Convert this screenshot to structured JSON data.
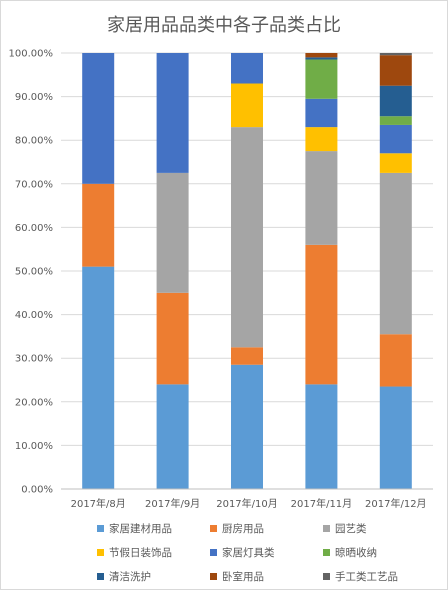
{
  "chart_data": {
    "type": "bar",
    "stacked": true,
    "title": "家居用品品类中各子品类占比",
    "categories": [
      "2017年/8月",
      "2017年/9月",
      "2017年/10月",
      "2017年/11月",
      "2017年/12月"
    ],
    "y_ticks": [
      "0.00%",
      "10.00%",
      "20.00%",
      "30.00%",
      "40.00%",
      "50.00%",
      "60.00%",
      "70.00%",
      "80.00%",
      "90.00%",
      "100.00%"
    ],
    "ylim": [
      0,
      100
    ],
    "grid": true,
    "legend_position": "bottom",
    "series": [
      {
        "name": "家居建材用品",
        "color": "#5b9bd5",
        "values": [
          51.0,
          24.0,
          28.5,
          24.0,
          23.5
        ]
      },
      {
        "name": "厨房用品",
        "color": "#ed7d31",
        "values": [
          19.0,
          21.0,
          4.0,
          32.0,
          12.0
        ]
      },
      {
        "name": "园艺类",
        "color": "#a5a5a5",
        "values": [
          0,
          27.5,
          50.5,
          21.5,
          37.0
        ]
      },
      {
        "name": "节假日装饰品",
        "color": "#ffc000",
        "values": [
          0,
          0,
          10.0,
          5.5,
          4.5
        ]
      },
      {
        "name": "家居灯具类",
        "color": "#4472c4",
        "values": [
          30.0,
          27.5,
          7.0,
          6.5,
          6.5
        ]
      },
      {
        "name": "晾晒收纳",
        "color": "#70ad47",
        "values": [
          0,
          0,
          0,
          9.0,
          2.0
        ]
      },
      {
        "name": "清洁洗护",
        "color": "#255e91",
        "values": [
          0,
          0,
          0,
          0.5,
          7.0
        ]
      },
      {
        "name": "卧室用品",
        "color": "#9e480e",
        "values": [
          0,
          0,
          0,
          1.0,
          7.0
        ]
      },
      {
        "name": "手工类工艺品",
        "color": "#636363",
        "values": [
          0,
          0,
          0,
          0,
          0.5
        ]
      }
    ]
  }
}
